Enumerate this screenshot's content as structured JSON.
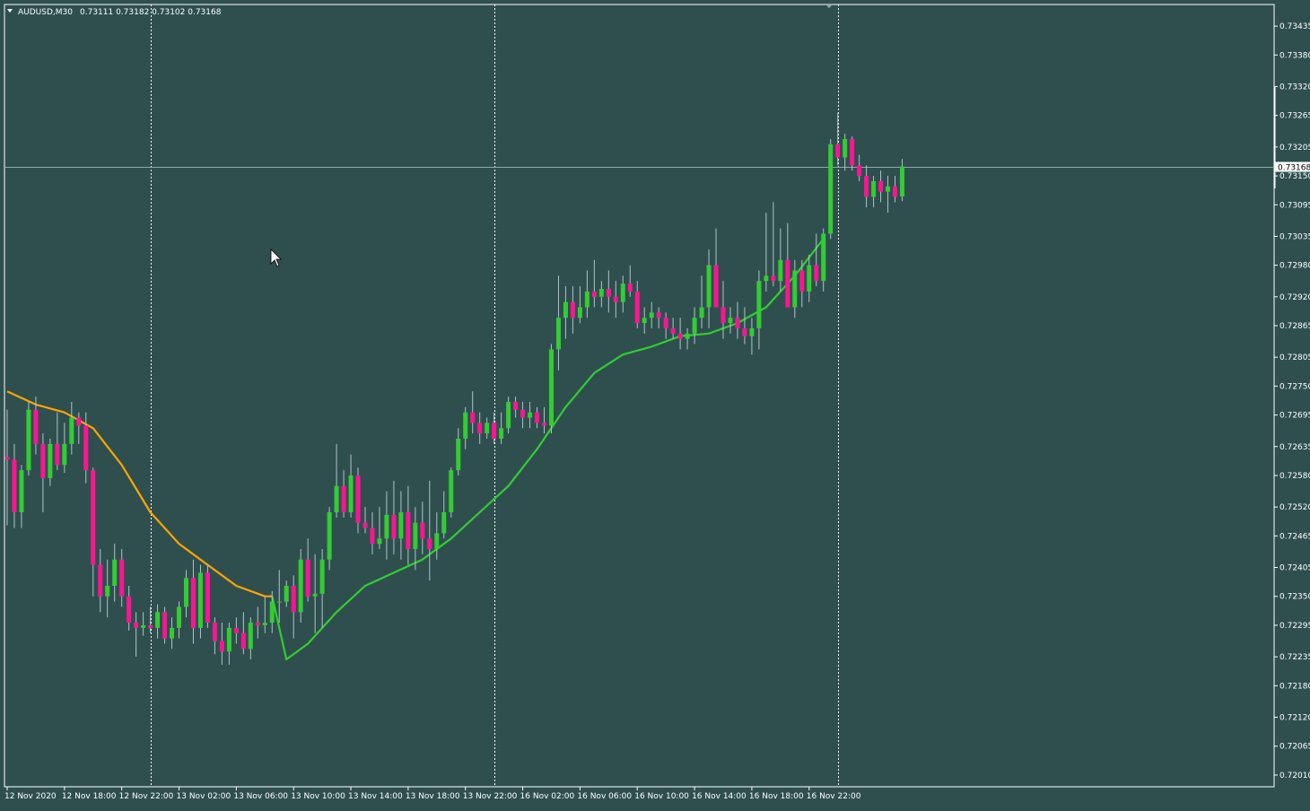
{
  "header": {
    "symbol_label": "AUDUSD,M30",
    "ohlc_label": "0.73111 0.73182 0.73102 0.73168"
  },
  "colors": {
    "background": "#2f4f4f",
    "bull_candle": "#32cd32",
    "bear_candle": "#ff1493",
    "ma_up": "#32cd32",
    "ma_down": "#ffa500",
    "separator": "#ffffff",
    "axis_text": "#ffffff",
    "current_price_line": "#8fa8a8"
  },
  "chart_data": {
    "type": "candlestick",
    "symbol": "AUDUSD",
    "timeframe": "M30",
    "y_range": [
      0.7198,
      0.73465
    ],
    "y_ticks": [
      "0.73435",
      "0.73380",
      "0.73320",
      "0.73265",
      "0.73205",
      "0.73150",
      "0.73095",
      "0.73035",
      "0.72980",
      "0.72920",
      "0.72865",
      "0.72805",
      "0.72750",
      "0.72695",
      "0.72635",
      "0.72580",
      "0.72520",
      "0.72465",
      "0.72405",
      "0.72350",
      "0.72295",
      "0.72235",
      "0.72180",
      "0.72120",
      "0.72065",
      "0.72010"
    ],
    "current_price": "0.73168",
    "x_labels": [
      {
        "label": "12 Nov 2020",
        "bar": 0
      },
      {
        "label": "12 Nov 18:00",
        "bar": 8
      },
      {
        "label": "12 Nov 22:00",
        "bar": 16
      },
      {
        "label": "13 Nov 02:00",
        "bar": 24
      },
      {
        "label": "13 Nov 06:00",
        "bar": 32
      },
      {
        "label": "13 Nov 10:00",
        "bar": 40
      },
      {
        "label": "13 Nov 14:00",
        "bar": 48
      },
      {
        "label": "13 Nov 18:00",
        "bar": 56
      },
      {
        "label": "13 Nov 22:00",
        "bar": 64
      },
      {
        "label": "16 Nov 02:00",
        "bar": 72
      },
      {
        "label": "16 Nov 06:00",
        "bar": 80
      },
      {
        "label": "16 Nov 10:00",
        "bar": 88
      },
      {
        "label": "16 Nov 14:00",
        "bar": 96
      },
      {
        "label": "16 Nov 18:00",
        "bar": 104
      },
      {
        "label": "16 Nov 22:00",
        "bar": 112
      }
    ],
    "separators_at_bar": [
      20,
      68,
      116
    ],
    "candles": [
      {
        "o": 0.72615,
        "h": 0.72705,
        "l": 0.72485,
        "c": 0.7261
      },
      {
        "o": 0.7261,
        "h": 0.7264,
        "l": 0.7248,
        "c": 0.7251
      },
      {
        "o": 0.7251,
        "h": 0.726,
        "l": 0.7248,
        "c": 0.7259
      },
      {
        "o": 0.7259,
        "h": 0.7272,
        "l": 0.7258,
        "c": 0.72705
      },
      {
        "o": 0.72705,
        "h": 0.7273,
        "l": 0.7262,
        "c": 0.7264
      },
      {
        "o": 0.7264,
        "h": 0.7266,
        "l": 0.7251,
        "c": 0.72575
      },
      {
        "o": 0.72575,
        "h": 0.7265,
        "l": 0.7256,
        "c": 0.7264
      },
      {
        "o": 0.7264,
        "h": 0.727,
        "l": 0.7259,
        "c": 0.726
      },
      {
        "o": 0.726,
        "h": 0.7268,
        "l": 0.72585,
        "c": 0.7264
      },
      {
        "o": 0.7264,
        "h": 0.7272,
        "l": 0.7262,
        "c": 0.7269
      },
      {
        "o": 0.7269,
        "h": 0.727,
        "l": 0.7264,
        "c": 0.72675
      },
      {
        "o": 0.72675,
        "h": 0.727,
        "l": 0.72565,
        "c": 0.7259
      },
      {
        "o": 0.7259,
        "h": 0.72595,
        "l": 0.7235,
        "c": 0.7241
      },
      {
        "o": 0.7241,
        "h": 0.7244,
        "l": 0.7232,
        "c": 0.7235
      },
      {
        "o": 0.7235,
        "h": 0.7242,
        "l": 0.7231,
        "c": 0.7237
      },
      {
        "o": 0.7237,
        "h": 0.7245,
        "l": 0.7234,
        "c": 0.7242
      },
      {
        "o": 0.7242,
        "h": 0.7244,
        "l": 0.7233,
        "c": 0.7235
      },
      {
        "o": 0.7235,
        "h": 0.7237,
        "l": 0.72285,
        "c": 0.723
      },
      {
        "o": 0.723,
        "h": 0.7232,
        "l": 0.72235,
        "c": 0.7229
      },
      {
        "o": 0.7229,
        "h": 0.7232,
        "l": 0.72275,
        "c": 0.72295
      },
      {
        "o": 0.72295,
        "h": 0.7233,
        "l": 0.7228,
        "c": 0.7229
      },
      {
        "o": 0.7229,
        "h": 0.72335,
        "l": 0.7227,
        "c": 0.7232
      },
      {
        "o": 0.7232,
        "h": 0.7233,
        "l": 0.7226,
        "c": 0.7227
      },
      {
        "o": 0.7227,
        "h": 0.7231,
        "l": 0.7225,
        "c": 0.7229
      },
      {
        "o": 0.7229,
        "h": 0.7234,
        "l": 0.7227,
        "c": 0.7233
      },
      {
        "o": 0.7233,
        "h": 0.724,
        "l": 0.7231,
        "c": 0.72385
      },
      {
        "o": 0.72385,
        "h": 0.7242,
        "l": 0.7226,
        "c": 0.7229
      },
      {
        "o": 0.7229,
        "h": 0.7241,
        "l": 0.7227,
        "c": 0.72395
      },
      {
        "o": 0.72395,
        "h": 0.7241,
        "l": 0.7229,
        "c": 0.723
      },
      {
        "o": 0.723,
        "h": 0.7231,
        "l": 0.7224,
        "c": 0.72265
      },
      {
        "o": 0.72265,
        "h": 0.723,
        "l": 0.7222,
        "c": 0.72245
      },
      {
        "o": 0.72245,
        "h": 0.723,
        "l": 0.7222,
        "c": 0.7229
      },
      {
        "o": 0.7229,
        "h": 0.7231,
        "l": 0.7226,
        "c": 0.7228
      },
      {
        "o": 0.7228,
        "h": 0.7232,
        "l": 0.7224,
        "c": 0.7225
      },
      {
        "o": 0.7225,
        "h": 0.7231,
        "l": 0.7223,
        "c": 0.723
      },
      {
        "o": 0.723,
        "h": 0.7233,
        "l": 0.7227,
        "c": 0.72295
      },
      {
        "o": 0.72295,
        "h": 0.7235,
        "l": 0.7228,
        "c": 0.723
      },
      {
        "o": 0.723,
        "h": 0.7236,
        "l": 0.7228,
        "c": 0.7234
      },
      {
        "o": 0.7234,
        "h": 0.724,
        "l": 0.723,
        "c": 0.7234
      },
      {
        "o": 0.7234,
        "h": 0.7238,
        "l": 0.7233,
        "c": 0.7237
      },
      {
        "o": 0.7237,
        "h": 0.7239,
        "l": 0.7227,
        "c": 0.7232
      },
      {
        "o": 0.7232,
        "h": 0.7244,
        "l": 0.723,
        "c": 0.7242
      },
      {
        "o": 0.7242,
        "h": 0.7246,
        "l": 0.7234,
        "c": 0.7235
      },
      {
        "o": 0.7235,
        "h": 0.7243,
        "l": 0.7228,
        "c": 0.72355
      },
      {
        "o": 0.72355,
        "h": 0.7244,
        "l": 0.7229,
        "c": 0.7242
      },
      {
        "o": 0.7242,
        "h": 0.7252,
        "l": 0.724,
        "c": 0.7251
      },
      {
        "o": 0.7251,
        "h": 0.7264,
        "l": 0.725,
        "c": 0.7256
      },
      {
        "o": 0.7256,
        "h": 0.7259,
        "l": 0.725,
        "c": 0.7251
      },
      {
        "o": 0.7251,
        "h": 0.7262,
        "l": 0.725,
        "c": 0.7258
      },
      {
        "o": 0.7258,
        "h": 0.72595,
        "l": 0.7247,
        "c": 0.7249
      },
      {
        "o": 0.7249,
        "h": 0.7252,
        "l": 0.7247,
        "c": 0.7248
      },
      {
        "o": 0.7248,
        "h": 0.7251,
        "l": 0.7243,
        "c": 0.7245
      },
      {
        "o": 0.7245,
        "h": 0.7252,
        "l": 0.7244,
        "c": 0.7246
      },
      {
        "o": 0.7246,
        "h": 0.7255,
        "l": 0.7242,
        "c": 0.72505
      },
      {
        "o": 0.72505,
        "h": 0.7257,
        "l": 0.7243,
        "c": 0.7246
      },
      {
        "o": 0.7246,
        "h": 0.7255,
        "l": 0.7242,
        "c": 0.7251
      },
      {
        "o": 0.7251,
        "h": 0.7256,
        "l": 0.7241,
        "c": 0.7244
      },
      {
        "o": 0.7244,
        "h": 0.7252,
        "l": 0.724,
        "c": 0.7249
      },
      {
        "o": 0.7249,
        "h": 0.7253,
        "l": 0.7243,
        "c": 0.7246
      },
      {
        "o": 0.7246,
        "h": 0.7257,
        "l": 0.7238,
        "c": 0.7244
      },
      {
        "o": 0.7244,
        "h": 0.7251,
        "l": 0.7242,
        "c": 0.7247
      },
      {
        "o": 0.7247,
        "h": 0.7255,
        "l": 0.7246,
        "c": 0.7251
      },
      {
        "o": 0.7251,
        "h": 0.72595,
        "l": 0.725,
        "c": 0.7259
      },
      {
        "o": 0.7259,
        "h": 0.7267,
        "l": 0.7258,
        "c": 0.7265
      },
      {
        "o": 0.7265,
        "h": 0.7271,
        "l": 0.7263,
        "c": 0.727
      },
      {
        "o": 0.727,
        "h": 0.7274,
        "l": 0.7266,
        "c": 0.7268
      },
      {
        "o": 0.7268,
        "h": 0.727,
        "l": 0.7264,
        "c": 0.7266
      },
      {
        "o": 0.7266,
        "h": 0.7269,
        "l": 0.7265,
        "c": 0.7268
      },
      {
        "o": 0.7268,
        "h": 0.727,
        "l": 0.7264,
        "c": 0.7265
      },
      {
        "o": 0.7265,
        "h": 0.727,
        "l": 0.7264,
        "c": 0.7267
      },
      {
        "o": 0.7267,
        "h": 0.7273,
        "l": 0.7266,
        "c": 0.7272
      },
      {
        "o": 0.7272,
        "h": 0.7273,
        "l": 0.7269,
        "c": 0.72705
      },
      {
        "o": 0.72705,
        "h": 0.7272,
        "l": 0.7267,
        "c": 0.7269
      },
      {
        "o": 0.7269,
        "h": 0.7272,
        "l": 0.7267,
        "c": 0.727
      },
      {
        "o": 0.727,
        "h": 0.7271,
        "l": 0.7267,
        "c": 0.7268
      },
      {
        "o": 0.7268,
        "h": 0.7271,
        "l": 0.7266,
        "c": 0.72675
      },
      {
        "o": 0.72675,
        "h": 0.7283,
        "l": 0.7266,
        "c": 0.7282
      },
      {
        "o": 0.7282,
        "h": 0.7296,
        "l": 0.7278,
        "c": 0.7288
      },
      {
        "o": 0.7288,
        "h": 0.7294,
        "l": 0.7284,
        "c": 0.7291
      },
      {
        "o": 0.7291,
        "h": 0.7294,
        "l": 0.7285,
        "c": 0.7288
      },
      {
        "o": 0.7288,
        "h": 0.7294,
        "l": 0.7287,
        "c": 0.729
      },
      {
        "o": 0.729,
        "h": 0.7297,
        "l": 0.7288,
        "c": 0.7293
      },
      {
        "o": 0.7293,
        "h": 0.7299,
        "l": 0.729,
        "c": 0.7292
      },
      {
        "o": 0.7292,
        "h": 0.7295,
        "l": 0.729,
        "c": 0.72935
      },
      {
        "o": 0.72935,
        "h": 0.7297,
        "l": 0.7289,
        "c": 0.7292
      },
      {
        "o": 0.7292,
        "h": 0.7295,
        "l": 0.7288,
        "c": 0.7291
      },
      {
        "o": 0.7291,
        "h": 0.7296,
        "l": 0.7289,
        "c": 0.72945
      },
      {
        "o": 0.72945,
        "h": 0.7298,
        "l": 0.7292,
        "c": 0.7293
      },
      {
        "o": 0.7293,
        "h": 0.7295,
        "l": 0.7286,
        "c": 0.7287
      },
      {
        "o": 0.7287,
        "h": 0.729,
        "l": 0.7285,
        "c": 0.7288
      },
      {
        "o": 0.7288,
        "h": 0.7291,
        "l": 0.7286,
        "c": 0.7289
      },
      {
        "o": 0.7289,
        "h": 0.729,
        "l": 0.7286,
        "c": 0.7288
      },
      {
        "o": 0.7288,
        "h": 0.7289,
        "l": 0.7284,
        "c": 0.7286
      },
      {
        "o": 0.7286,
        "h": 0.7288,
        "l": 0.7284,
        "c": 0.7285
      },
      {
        "o": 0.7285,
        "h": 0.7288,
        "l": 0.7282,
        "c": 0.7284
      },
      {
        "o": 0.7284,
        "h": 0.7286,
        "l": 0.7282,
        "c": 0.7285
      },
      {
        "o": 0.7285,
        "h": 0.729,
        "l": 0.7283,
        "c": 0.7288
      },
      {
        "o": 0.7288,
        "h": 0.7296,
        "l": 0.7286,
        "c": 0.729
      },
      {
        "o": 0.729,
        "h": 0.7301,
        "l": 0.7286,
        "c": 0.7298
      },
      {
        "o": 0.7298,
        "h": 0.7305,
        "l": 0.729,
        "c": 0.729
      },
      {
        "o": 0.729,
        "h": 0.7295,
        "l": 0.7284,
        "c": 0.7287
      },
      {
        "o": 0.7287,
        "h": 0.729,
        "l": 0.7285,
        "c": 0.7288
      },
      {
        "o": 0.7288,
        "h": 0.7291,
        "l": 0.7284,
        "c": 0.7286
      },
      {
        "o": 0.7286,
        "h": 0.729,
        "l": 0.7283,
        "c": 0.72845
      },
      {
        "o": 0.72845,
        "h": 0.7288,
        "l": 0.7281,
        "c": 0.7286
      },
      {
        "o": 0.7286,
        "h": 0.7297,
        "l": 0.7282,
        "c": 0.7295
      },
      {
        "o": 0.7295,
        "h": 0.7308,
        "l": 0.7293,
        "c": 0.7296
      },
      {
        "o": 0.7296,
        "h": 0.731,
        "l": 0.7294,
        "c": 0.7295
      },
      {
        "o": 0.7295,
        "h": 0.7305,
        "l": 0.7293,
        "c": 0.7299
      },
      {
        "o": 0.7299,
        "h": 0.7306,
        "l": 0.729,
        "c": 0.729
      },
      {
        "o": 0.729,
        "h": 0.7299,
        "l": 0.7288,
        "c": 0.7297
      },
      {
        "o": 0.7297,
        "h": 0.7299,
        "l": 0.729,
        "c": 0.7293
      },
      {
        "o": 0.7293,
        "h": 0.73,
        "l": 0.7291,
        "c": 0.7298
      },
      {
        "o": 0.7298,
        "h": 0.7304,
        "l": 0.7294,
        "c": 0.7295
      },
      {
        "o": 0.7295,
        "h": 0.7305,
        "l": 0.7293,
        "c": 0.7304
      },
      {
        "o": 0.7304,
        "h": 0.7322,
        "l": 0.7303,
        "c": 0.7321
      },
      {
        "o": 0.7321,
        "h": 0.7327,
        "l": 0.7317,
        "c": 0.73185
      },
      {
        "o": 0.73185,
        "h": 0.7323,
        "l": 0.7316,
        "c": 0.7322
      },
      {
        "o": 0.7322,
        "h": 0.73225,
        "l": 0.7316,
        "c": 0.7317
      },
      {
        "o": 0.7317,
        "h": 0.7319,
        "l": 0.7314,
        "c": 0.7315
      },
      {
        "o": 0.7315,
        "h": 0.7317,
        "l": 0.7309,
        "c": 0.7311
      },
      {
        "o": 0.7311,
        "h": 0.7315,
        "l": 0.7309,
        "c": 0.7314
      },
      {
        "o": 0.7314,
        "h": 0.7316,
        "l": 0.731,
        "c": 0.7312
      },
      {
        "o": 0.7312,
        "h": 0.7315,
        "l": 0.7308,
        "c": 0.7313
      },
      {
        "o": 0.7313,
        "h": 0.7315,
        "l": 0.731,
        "c": 0.7311
      },
      {
        "o": 0.73111,
        "h": 0.73182,
        "l": 0.73102,
        "c": 0.73168
      }
    ],
    "ma_down": [
      {
        "bar": 0,
        "v": 0.7274
      },
      {
        "bar": 4,
        "v": 0.72715
      },
      {
        "bar": 8,
        "v": 0.727
      },
      {
        "bar": 12,
        "v": 0.7267
      },
      {
        "bar": 16,
        "v": 0.726
      },
      {
        "bar": 20,
        "v": 0.7251
      },
      {
        "bar": 24,
        "v": 0.7245
      },
      {
        "bar": 28,
        "v": 0.7241
      },
      {
        "bar": 32,
        "v": 0.7237
      },
      {
        "bar": 36,
        "v": 0.7235
      },
      {
        "bar": 37,
        "v": 0.7235
      }
    ],
    "ma_up": [
      {
        "bar": 37,
        "v": 0.7235
      },
      {
        "bar": 39,
        "v": 0.7223
      },
      {
        "bar": 42,
        "v": 0.7226
      },
      {
        "bar": 46,
        "v": 0.7232
      },
      {
        "bar": 50,
        "v": 0.7237
      },
      {
        "bar": 54,
        "v": 0.72395
      },
      {
        "bar": 58,
        "v": 0.7242
      },
      {
        "bar": 62,
        "v": 0.7246
      },
      {
        "bar": 66,
        "v": 0.7251
      },
      {
        "bar": 70,
        "v": 0.7256
      },
      {
        "bar": 74,
        "v": 0.7263
      },
      {
        "bar": 78,
        "v": 0.7271
      },
      {
        "bar": 82,
        "v": 0.72775
      },
      {
        "bar": 86,
        "v": 0.7281
      },
      {
        "bar": 90,
        "v": 0.72825
      },
      {
        "bar": 94,
        "v": 0.72845
      },
      {
        "bar": 98,
        "v": 0.7285
      },
      {
        "bar": 102,
        "v": 0.7287
      },
      {
        "bar": 106,
        "v": 0.729
      },
      {
        "bar": 110,
        "v": 0.7296
      },
      {
        "bar": 114,
        "v": 0.7303
      }
    ]
  }
}
